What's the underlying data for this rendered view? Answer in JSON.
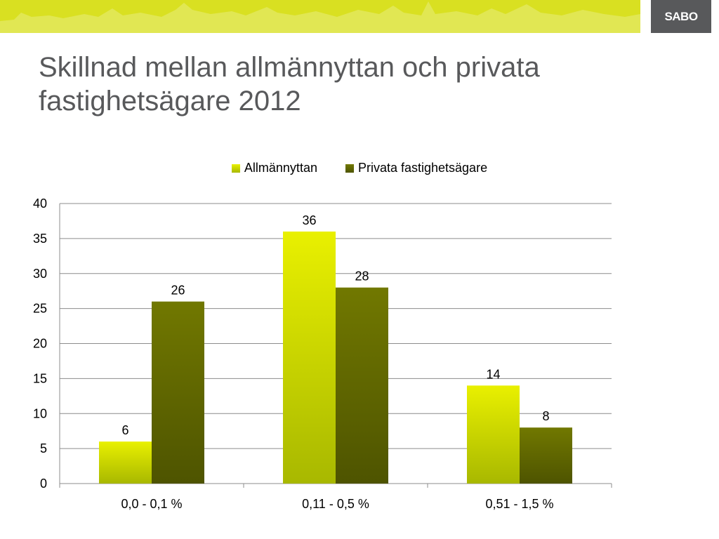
{
  "header": {
    "logo_text": "SABO",
    "title": "Skillnad mellan allmännyttan och privata fastighetsägare 2012"
  },
  "colors": {
    "banner": "#d9e021",
    "allmannyttan_top": "#e9f000",
    "allmannyttan_bottom": "#a8b800",
    "privata_top": "#717800",
    "privata_bottom": "#4e5400"
  },
  "chart_data": {
    "type": "bar",
    "categories": [
      "0,0 - 0,1 %",
      "0,11 - 0,5 %",
      "0,51 - 1,5 %"
    ],
    "series": [
      {
        "name": "Allmännyttan",
        "values": [
          6,
          36,
          14
        ]
      },
      {
        "name": "Privata fastighetsägare",
        "values": [
          26,
          28,
          8
        ]
      }
    ],
    "ylim": [
      0,
      40
    ],
    "yticks": [
      0,
      5,
      10,
      15,
      20,
      25,
      30,
      35,
      40
    ],
    "data_labels": true,
    "grid": true,
    "legend": "top"
  }
}
